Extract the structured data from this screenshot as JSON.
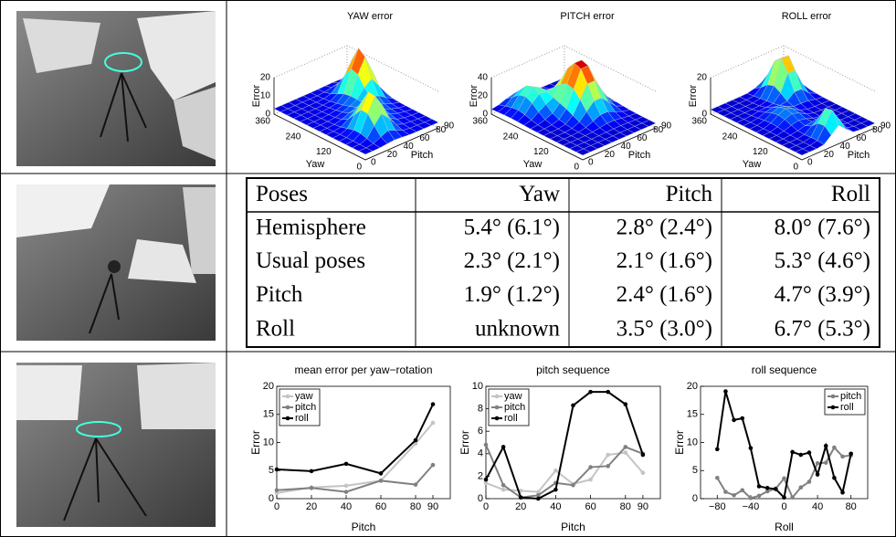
{
  "figure": {
    "surface_plots": [
      {
        "title": "YAW error",
        "zlabel": "Error",
        "xlabel": "Yaw",
        "ylabel": "Pitch",
        "zticks": [
          0,
          10,
          20
        ],
        "xticks": [
          360,
          240,
          120,
          0
        ],
        "yticks": [
          0,
          20,
          40,
          60,
          80,
          90
        ]
      },
      {
        "title": "PITCH error",
        "zlabel": "Error",
        "xlabel": "Yaw",
        "ylabel": "Pitch",
        "zticks": [
          0,
          20,
          40
        ],
        "xticks": [
          360,
          240,
          120,
          0
        ],
        "yticks": [
          0,
          20,
          40,
          60,
          80,
          90
        ]
      },
      {
        "title": "ROLL error",
        "zlabel": "Error",
        "xlabel": "Yaw",
        "ylabel": "Pitch",
        "zticks": [
          0,
          20
        ],
        "xticks": [
          360,
          240,
          120,
          0
        ],
        "yticks": [
          0,
          20,
          40,
          60,
          80,
          90
        ]
      }
    ],
    "table": {
      "header": [
        "Poses",
        "Yaw",
        "Pitch",
        "Roll"
      ],
      "rows": [
        [
          "Hemisphere",
          "5.4° (6.1°)",
          "2.8° (2.4°)",
          "8.0° (7.6°)"
        ],
        [
          "Usual poses",
          "2.3° (2.1°)",
          "2.1° (1.6°)",
          "5.3° (4.6°)"
        ],
        [
          "Pitch",
          "1.9° (1.2°)",
          "2.4° (1.6°)",
          "4.7° (3.9°)"
        ],
        [
          "Roll",
          "unknown",
          "3.5° (3.0°)",
          "6.7° (5.3°)"
        ]
      ]
    }
  },
  "chart_data": [
    {
      "type": "line",
      "title": "mean error per yaw−rotation",
      "xlabel": "Pitch",
      "ylabel": "Error",
      "x": [
        0,
        20,
        40,
        60,
        80,
        90
      ],
      "series": [
        {
          "name": "yaw",
          "color": "#c4c4c4",
          "values": [
            1.0,
            2.0,
            2.3,
            3.2,
            9.8,
            13.5
          ]
        },
        {
          "name": "pitch",
          "color": "#808080",
          "values": [
            1.5,
            1.9,
            1.2,
            3.2,
            2.5,
            6.0
          ]
        },
        {
          "name": "roll",
          "color": "#000000",
          "values": [
            5.2,
            4.9,
            6.2,
            4.5,
            10.4,
            16.8
          ]
        }
      ],
      "xlim": [
        0,
        100
      ],
      "ylim": [
        0,
        20
      ],
      "xticks": [
        0,
        20,
        40,
        60,
        80,
        90
      ],
      "yticks": [
        0,
        5,
        10,
        15,
        20
      ],
      "legend": "upper left"
    },
    {
      "type": "line",
      "title": "pitch sequence",
      "xlabel": "Pitch",
      "ylabel": "Error",
      "x": [
        0,
        10,
        20,
        30,
        40,
        50,
        60,
        70,
        80,
        90
      ],
      "series": [
        {
          "name": "yaw",
          "color": "#c4c4c4",
          "values": [
            1.4,
            0.8,
            0.7,
            0.6,
            2.5,
            1.3,
            1.7,
            3.9,
            4.1,
            2.3
          ]
        },
        {
          "name": "pitch",
          "color": "#808080",
          "values": [
            4.8,
            1.2,
            0.1,
            0.3,
            1.4,
            1.2,
            2.8,
            2.9,
            4.6,
            4.0
          ]
        },
        {
          "name": "roll",
          "color": "#000000",
          "values": [
            1.7,
            4.6,
            0.1,
            0.0,
            0.8,
            8.3,
            9.5,
            9.5,
            8.4,
            3.9
          ]
        }
      ],
      "xlim": [
        0,
        100
      ],
      "ylim": [
        0,
        10
      ],
      "xticks": [
        0,
        20,
        40,
        60,
        80,
        90
      ],
      "yticks": [
        0,
        2,
        4,
        6,
        8,
        10
      ],
      "legend": "upper left"
    },
    {
      "type": "line",
      "title": "roll sequence",
      "xlabel": "Roll",
      "ylabel": "Error",
      "x": [
        -80,
        -70,
        -60,
        -50,
        -40,
        -30,
        -20,
        -10,
        0,
        10,
        20,
        30,
        40,
        50,
        60,
        70,
        80
      ],
      "series": [
        {
          "name": "pitch",
          "color": "#808080",
          "values": [
            3.7,
            1.2,
            0.6,
            1.5,
            0.1,
            0.5,
            1.3,
            1.8,
            3.6,
            0.2,
            2.0,
            3.0,
            6.3,
            6.4,
            9.1,
            7.5,
            7.7
          ]
        },
        {
          "name": "roll",
          "color": "#000000",
          "values": [
            8.8,
            19.1,
            14.0,
            14.3,
            9.0,
            2.2,
            1.9,
            1.7,
            0.2,
            8.3,
            7.8,
            8.2,
            4.3,
            9.4,
            3.7,
            1.1,
            8.0
          ]
        }
      ],
      "xlim": [
        -100,
        100
      ],
      "ylim": [
        0,
        20
      ],
      "xticks": [
        {
          "value": -80,
          "label": "−80"
        },
        {
          "value": -40,
          "label": "−40"
        },
        0,
        40,
        80
      ],
      "yticks": [
        0,
        5,
        10,
        15,
        20
      ],
      "legend": "upper right"
    }
  ]
}
